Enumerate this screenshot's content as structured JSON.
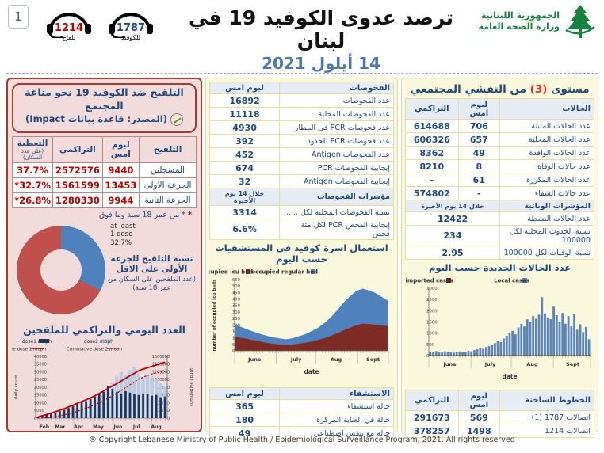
{
  "header": {
    "page_number": "1",
    "hotline_vaccine": {
      "number": "1214",
      "label": "للقاح",
      "color": "#C00000"
    },
    "hotline_covid": {
      "number": "1787",
      "label": "للكوفيد",
      "color": "#1F497D"
    },
    "title": "ترصد عدوى الكوفيد 19 في لبنان",
    "date": "14 أيلول 2021",
    "ministry_line1": "الجمهورية اللبنانية",
    "ministry_line2": "وزارة الصحة العامة"
  },
  "left_panel": {
    "title": "التلقيح ضد الكوفيد 19  نحو مناعة المجتمع",
    "subtitle": "(المصدر: قاعدة بيانات Impact)",
    "table": {
      "headers": [
        "التلقيح",
        "ليوم امس",
        "التراكمي",
        "التغطية"
      ],
      "coverage_note": "(على عدد السكان)",
      "rows": [
        {
          "label": "المسجلين",
          "yesterday": "9440",
          "cumulative": "2572576",
          "coverage": "37.7%"
        },
        {
          "label": "الجرعة الاولى",
          "yesterday": "13453",
          "cumulative": "1561599",
          "coverage": "*32.7%"
        },
        {
          "label": "الجرعة الثانية",
          "yesterday": "9944",
          "cumulative": "1280330",
          "coverage": "*26.8%"
        }
      ]
    },
    "footnote": "* من عمر 18 سنة وما فوق",
    "donut": {
      "label1": "at least",
      "label2": "1 dose",
      "label3": "32.7%",
      "value_pct": 32.7
    },
    "donut_caption1": "نسبة التلقيح للجرعة الأولى على الاقل",
    "donut_caption2": "(عدد الملقحين على السكان من عمر 18 سنة)",
    "chart_title": "العدد اليومي والتراكمي للملقحين"
  },
  "middle_panel": {
    "tests_table": {
      "headers": [
        "الفحوصات",
        "ليوم امس"
      ],
      "rows": [
        {
          "cells": [
            "عدد الفحوصات",
            "16892"
          ]
        },
        {
          "cells": [
            "عدد الفحوصات المحلية",
            "11118"
          ]
        },
        {
          "cells": [
            "عدد فحوصات PCR في المطار",
            "4930"
          ]
        },
        {
          "cells": [
            "عدد فحوصات PCR للحدود",
            "392"
          ]
        },
        {
          "cells": [
            "عدد الفحوصات Antigen",
            "452"
          ]
        },
        {
          "cells": [
            "إيجابية الفحوصات PCR",
            "674"
          ]
        },
        {
          "cells": [
            "إيجابية الفحوصات Antigen",
            "32"
          ]
        },
        {
          "cells": [
            "مؤشرات الفحوصات",
            "خلال 14 يوم الأخيرة"
          ],
          "header": true
        },
        {
          "cells": [
            "نسبة الفحوصات المحلية لكل ......",
            "3314"
          ]
        },
        {
          "cells": [
            "إيجابية الفحص PCR لكل مئة فحص",
            "6.6%"
          ]
        }
      ]
    },
    "beds_chart_title": "استعمال اسرة كوفيد في المستشفيات حسب اليوم",
    "hosp_table": {
      "headers": [
        "الاستشفاء",
        "ليوم امس"
      ],
      "rows": [
        {
          "cells": [
            "حالة استشفاء",
            "365"
          ]
        },
        {
          "cells": [
            "حالة في العناية المركزة",
            "180"
          ]
        },
        {
          "cells": [
            "حالة مع تنفس اصطناعي",
            "49"
          ]
        }
      ]
    }
  },
  "right_panel": {
    "title_prefix": "مستوى ",
    "title_level": "(3)",
    "title_suffix": " من التفشي المجتمعي",
    "cases_table": {
      "headers": [
        "الحالات",
        "ليوم امس",
        "التراكمي"
      ],
      "rows": [
        {
          "cells": [
            "عدد الحالات المثبتة",
            "706",
            "614688"
          ]
        },
        {
          "cells": [
            "عدد الحالات المحلية",
            "657",
            "606326"
          ]
        },
        {
          "cells": [
            "عدد الحالات الوافدة",
            "49",
            "8362"
          ]
        },
        {
          "cells": [
            "عدد حالات الوفاة",
            "8",
            "8210"
          ]
        },
        {
          "cells": [
            "عدد الحالات المكررة",
            "61",
            "-"
          ]
        },
        {
          "cells": [
            "عدد حالات الشفاء",
            "-",
            "574802"
          ]
        },
        {
          "cells": [
            "المؤشرات الوبائية",
            "خلال 14 يوم الأخيرة"
          ],
          "header": true,
          "span": 2
        },
        {
          "cells": [
            "عدد الحالات النشطة",
            "12422"
          ],
          "span": 2
        },
        {
          "cells": [
            "نسبة الحدوث المحلية لكل 100000",
            "234"
          ],
          "span": 2
        },
        {
          "cells": [
            "نسبة الوفيات لكل 100000",
            "2.95"
          ],
          "span": 2
        }
      ]
    },
    "cases_chart_title": "عدد الحالات الجديدة حسب اليوم",
    "hotlines_table": {
      "headers": [
        "الخطوط الساخنة",
        "ليوم امس",
        "التراكمي"
      ],
      "rows": [
        {
          "cells": [
            "اتصالات 1787 (1)",
            "569",
            "291673"
          ]
        },
        {
          "cells": [
            "اتصالات 1214",
            "1498",
            "378257"
          ]
        }
      ]
    }
  },
  "footer": {
    "copyright": "® Copyright Lebanese Ministry of Public Health / Epidemiological Surveillance Program, 2021. All rights reserved"
  },
  "colors": {
    "navy": "#1F497D",
    "red_text": "#C00000",
    "steel_blue": "#4F81BD",
    "donut_blue": "#4F81BD",
    "donut_red": "#C0504D",
    "maroon": "#7E2B25",
    "bar_blue": "#5B84B9",
    "dose1_dark_blue": "#17375E",
    "dose2_light_blue": "#B8CCE4",
    "cumulative_red": "#C00000",
    "panel_pink": "#F2DCDB",
    "panel_border_red": "#9E3B35",
    "panel_yellow": "#FAF8DC",
    "logo_green": "#17813F"
  },
  "chart_data": [
    {
      "id": "vaccination_combo",
      "type": "bar",
      "title": "العدد اليومي والتراكمي للملقحين",
      "legend": [
        "dose1  moph",
        "dose2 moph",
        "Cumulative dose 1 moph",
        "Cumulative dose 2 moph"
      ],
      "ylabel_left": "daily count",
      "ylabel_right": "cumulative count",
      "ylim_left": [
        0,
        40000
      ],
      "ytick_left": 5000,
      "ylim_right": [
        0,
        1600000
      ],
      "ytick_right": 200000,
      "months": [
        "Feb",
        "Mar",
        "Apr",
        "May",
        "Jun",
        "Jul",
        "Aug"
      ],
      "month_fracs": [
        0.03,
        0.15,
        0.29,
        0.44,
        0.59,
        0.73,
        0.88
      ],
      "series": [
        {
          "name": "dose1 daily",
          "values": [
            1000,
            2000,
            2500,
            3000,
            3500,
            4500,
            5500,
            6500,
            8000,
            9500,
            10500,
            11000,
            12500,
            14000,
            15500,
            17000,
            21000,
            19000,
            17000,
            16000,
            17500,
            16500,
            15500,
            15000,
            16000,
            15500,
            14500,
            15000,
            13500,
            14000
          ]
        },
        {
          "name": "dose2 daily",
          "values": [
            0,
            300,
            600,
            1200,
            1800,
            2400,
            3000,
            3800,
            4800,
            5800,
            7000,
            8200,
            9500,
            11000,
            13000,
            15000,
            19000,
            23000,
            27000,
            30000,
            28000,
            31000,
            33000,
            29000,
            26000,
            28000,
            27000,
            25000,
            23000,
            21000
          ]
        },
        {
          "name": "cumulative dose 1",
          "values": [
            30000,
            60000,
            95000,
            130000,
            165000,
            205000,
            245000,
            290000,
            335000,
            385000,
            430000,
            475000,
            525000,
            580000,
            640000,
            700000,
            770000,
            835000,
            895000,
            960000,
            1030000,
            1100000,
            1160000,
            1230000,
            1270000,
            1305000,
            1340000,
            1375000,
            1415000,
            1450000
          ]
        },
        {
          "name": "cumulative dose 2",
          "values": [
            0,
            4000,
            12000,
            25000,
            42000,
            62000,
            85000,
            112000,
            142000,
            176000,
            214000,
            255000,
            300000,
            348000,
            400000,
            456000,
            516000,
            580000,
            648000,
            718000,
            790000,
            864000,
            938000,
            1010000,
            1060000,
            1105000,
            1145000,
            1175000,
            1195000,
            1210000
          ]
        }
      ]
    },
    {
      "id": "hospital_beds",
      "type": "area",
      "title": "استعمال اسرة كوفيد في المستشفيات حسب اليوم",
      "legend": [
        "occupied icu bed",
        "occupied regular bed"
      ],
      "ylabel": "number of occupied icu beds",
      "xlabel": "date",
      "ylim": [
        0,
        550
      ],
      "ytick": 50,
      "months": [
        "June",
        "July",
        "Aug",
        "Sept"
      ],
      "month_fracs": [
        0.13,
        0.4,
        0.66,
        0.9
      ],
      "month_bounds": [
        0,
        0.27,
        0.53,
        0.8,
        1
      ],
      "series": [
        {
          "name": "occupied icu bed",
          "values": [
            110,
            100,
            92,
            82,
            72,
            62,
            55,
            50,
            46,
            48,
            55,
            62,
            72,
            85,
            98,
            115,
            135,
            158,
            178,
            196,
            210,
            206,
            200,
            195,
            190
          ]
        },
        {
          "name": "total occupied (icu + regular)",
          "values": [
            205,
            185,
            165,
            147,
            131,
            116,
            105,
            96,
            89,
            96,
            112,
            128,
            152,
            178,
            214,
            258,
            312,
            372,
            422,
            462,
            480,
            465,
            445,
            415,
            385
          ]
        }
      ]
    },
    {
      "id": "new_cases",
      "type": "bar",
      "title": "عدد الحالات الجديدة حسب اليوم",
      "legend": [
        "imported cases",
        "Local cases"
      ],
      "xlabel": "date",
      "ylim": [
        0,
        3000
      ],
      "ytick": 500,
      "months": [
        "June",
        "July",
        "Aug",
        "Sept"
      ],
      "month_fracs": [
        0.13,
        0.38,
        0.64,
        0.89
      ],
      "month_bounds": [
        0,
        0.26,
        0.51,
        0.77,
        1
      ],
      "series": [
        {
          "name": "Local cases",
          "values": [
            180,
            150,
            200,
            160,
            140,
            190,
            170,
            150,
            130,
            160,
            180,
            150,
            170,
            210,
            190,
            240,
            280,
            320,
            300,
            380,
            420,
            480,
            560,
            640,
            600,
            760,
            880,
            1000,
            1100,
            950,
            1250,
            1420,
            1300,
            1620,
            1500,
            1760,
            1640,
            1820,
            2600,
            1880,
            1700,
            1620,
            2180,
            1800,
            1520,
            1900,
            1420,
            1760,
            1300,
            1840,
            1150,
            1400,
            1050,
            1280,
            730
          ]
        },
        {
          "name": "imported cases (approx daily)",
          "values_constant": 25
        }
      ]
    }
  ]
}
